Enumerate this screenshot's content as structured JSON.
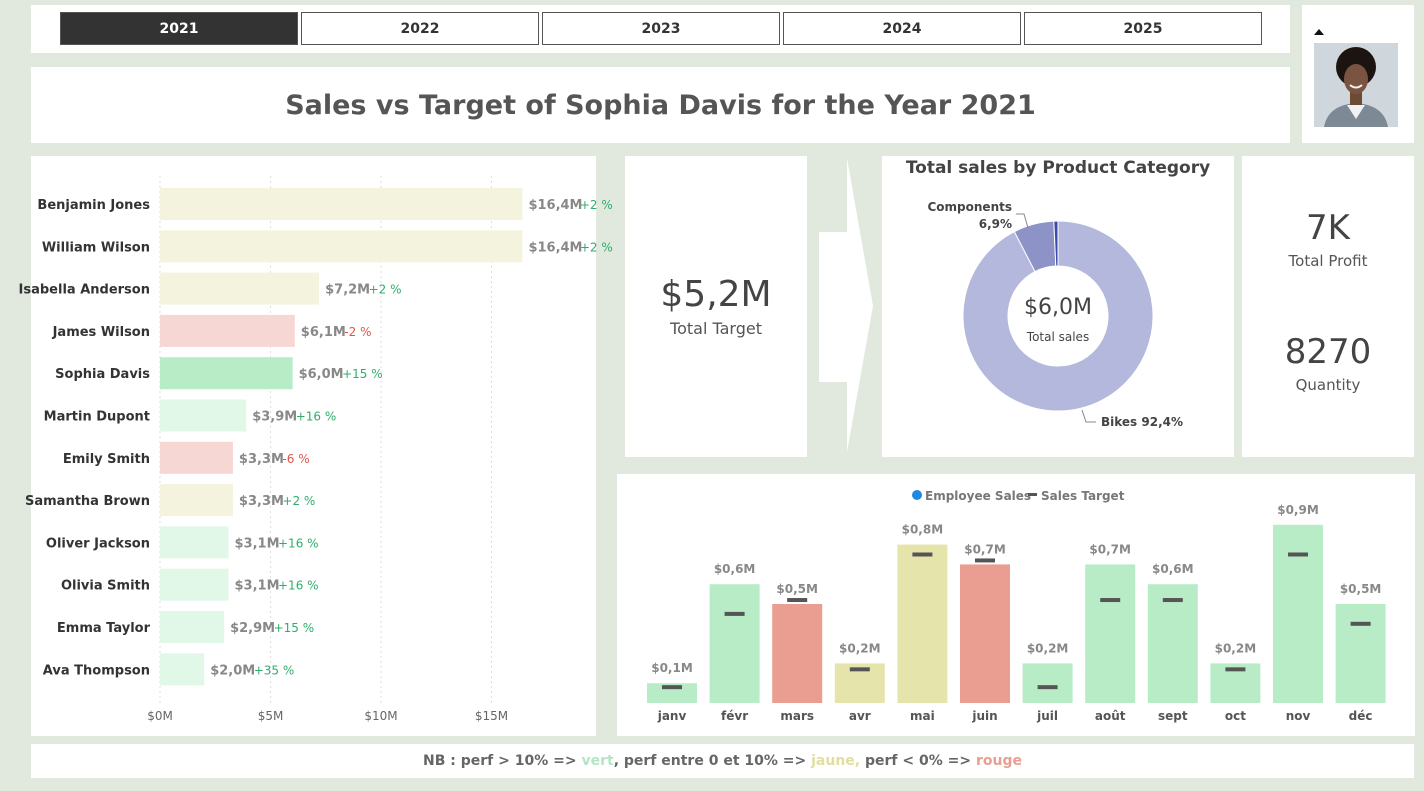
{
  "colors": {
    "green": "#b8ecc6",
    "green_light": "#e1f7e8",
    "yellow": "#f4f4de",
    "yellow_month": "#e5e4ab",
    "red": "#f6d7d3",
    "red_month": "#e99e91",
    "pos_text": "#2fae6b",
    "neg_text": "#e0564a",
    "target_mark": "#555555",
    "donut_bikes": "#b3b8dc",
    "donut_components": "#8e93c7",
    "donut_other": "#3c4aa8",
    "legend_dot": "#1e88e5"
  },
  "years": [
    {
      "label": "2021",
      "active": true
    },
    {
      "label": "2022",
      "active": false
    },
    {
      "label": "2023",
      "active": false
    },
    {
      "label": "2024",
      "active": false
    },
    {
      "label": "2025",
      "active": false
    }
  ],
  "title": "Sales vs Target of Sophia Davis for the Year 2021",
  "kpi": {
    "target_value": "$5,2M",
    "target_label": "Total Target",
    "profit_value": "7K",
    "profit_label": "Total Profit",
    "quantity_value": "8270",
    "quantity_label": "Quantity"
  },
  "ranking": {
    "xticks": [
      "$0M",
      "$5M",
      "$10M",
      "$15M"
    ],
    "xmax": 20,
    "rows": [
      {
        "name": "Benjamin Jones",
        "value": 16.4,
        "label": "$16,4M",
        "perf": "+2 %",
        "status": "yellow"
      },
      {
        "name": "William Wilson",
        "value": 16.4,
        "label": "$16,4M",
        "perf": "+2 %",
        "status": "yellow"
      },
      {
        "name": "Isabella Anderson",
        "value": 7.2,
        "label": "$7,2M",
        "perf": "+2 %",
        "status": "yellow"
      },
      {
        "name": "James Wilson",
        "value": 6.1,
        "label": "$6,1M",
        "perf": "-2 %",
        "status": "red"
      },
      {
        "name": "Sophia Davis",
        "value": 6.0,
        "label": "$6,0M",
        "perf": "+15 %",
        "status": "green_selected"
      },
      {
        "name": "Martin Dupont",
        "value": 3.9,
        "label": "$3,9M",
        "perf": "+16 %",
        "status": "green"
      },
      {
        "name": "Emily Smith",
        "value": 3.3,
        "label": "$3,3M",
        "perf": "-6 %",
        "status": "red"
      },
      {
        "name": "Samantha Brown",
        "value": 3.3,
        "label": "$3,3M",
        "perf": "+2 %",
        "status": "yellow"
      },
      {
        "name": "Oliver Jackson",
        "value": 3.1,
        "label": "$3,1M",
        "perf": "+16 %",
        "status": "green"
      },
      {
        "name": "Olivia Smith",
        "value": 3.1,
        "label": "$3,1M",
        "perf": "+16 %",
        "status": "green"
      },
      {
        "name": "Emma Taylor",
        "value": 2.9,
        "label": "$2,9M",
        "perf": "+15 %",
        "status": "green"
      },
      {
        "name": "Ava Thompson",
        "value": 2.0,
        "label": "$2,0M",
        "perf": "+35 %",
        "status": "green"
      }
    ]
  },
  "donut": {
    "title": "Total sales by Product Category",
    "center_value": "$6,0M",
    "center_label": "Total sales",
    "slices": [
      {
        "name": "Bikes",
        "pct": 92.4,
        "label": "Bikes 92,4%"
      },
      {
        "name": "Components",
        "pct": 6.9,
        "label": "6,9%"
      },
      {
        "name": "Other",
        "pct": 0.7,
        "label": ""
      }
    ]
  },
  "monthly": {
    "legend": [
      "Employee Sales",
      "Sales Target"
    ],
    "ymax": 1.0,
    "months": [
      {
        "m": "janv",
        "sales": 0.1,
        "target": 0.08,
        "label": "$0,1M",
        "status": "green"
      },
      {
        "m": "févr",
        "sales": 0.6,
        "target": 0.45,
        "label": "$0,6M",
        "status": "green"
      },
      {
        "m": "mars",
        "sales": 0.5,
        "target": 0.52,
        "label": "$0,5M",
        "status": "red"
      },
      {
        "m": "avr",
        "sales": 0.2,
        "target": 0.17,
        "label": "$0,2M",
        "status": "yellow"
      },
      {
        "m": "mai",
        "sales": 0.8,
        "target": 0.75,
        "label": "$0,8M",
        "status": "yellow"
      },
      {
        "m": "juin",
        "sales": 0.7,
        "target": 0.72,
        "label": "$0,7M",
        "status": "red"
      },
      {
        "m": "juil",
        "sales": 0.2,
        "target": 0.08,
        "label": "$0,2M",
        "status": "green"
      },
      {
        "m": "août",
        "sales": 0.7,
        "target": 0.52,
        "label": "$0,7M",
        "status": "green"
      },
      {
        "m": "sept",
        "sales": 0.6,
        "target": 0.52,
        "label": "$0,6M",
        "status": "green"
      },
      {
        "m": "oct",
        "sales": 0.2,
        "target": 0.17,
        "label": "$0,2M",
        "status": "green"
      },
      {
        "m": "nov",
        "sales": 0.9,
        "target": 0.75,
        "label": "$0,9M",
        "status": "green"
      },
      {
        "m": "déc",
        "sales": 0.5,
        "target": 0.4,
        "label": "$0,5M",
        "status": "green"
      }
    ]
  },
  "note": {
    "prefix": "NB : perf > 10% => ",
    "green_word": "vert",
    "mid": ", perf entre 0 et 10% => ",
    "yellow_word": "jaune,",
    "mid2": " perf < 0% => ",
    "red_word": "rouge"
  }
}
